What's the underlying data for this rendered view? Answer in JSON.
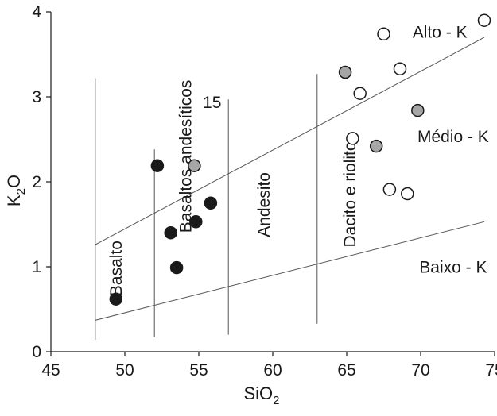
{
  "chart_data": {
    "type": "scatter",
    "title": "",
    "xlabel": {
      "base": "SiO",
      "sub": "2"
    },
    "ylabel": {
      "base": "K",
      "sub": "2",
      "tail": "O"
    },
    "xlim": [
      45,
      75
    ],
    "ylim": [
      0,
      4
    ],
    "xticks": [
      45,
      50,
      55,
      60,
      65,
      70,
      75
    ],
    "yticks": [
      0,
      1,
      2,
      3,
      4
    ],
    "grid": false,
    "legend": "none",
    "series": [
      {
        "fill": "#1a1a1a",
        "points": [
          {
            "x": 49.4,
            "y": 0.62
          },
          {
            "x": 52.2,
            "y": 2.19
          },
          {
            "x": 53.1,
            "y": 1.4
          },
          {
            "x": 53.5,
            "y": 0.99
          },
          {
            "x": 54.8,
            "y": 1.53
          },
          {
            "x": 55.8,
            "y": 1.75
          }
        ]
      },
      {
        "fill": "#a6a6a6",
        "points": [
          {
            "x": 54.7,
            "y": 2.19
          },
          {
            "x": 64.9,
            "y": 3.29
          },
          {
            "x": 67.0,
            "y": 2.42
          },
          {
            "x": 69.8,
            "y": 2.84
          }
        ]
      },
      {
        "fill": "#ffffff",
        "points": [
          {
            "x": 65.4,
            "y": 2.51
          },
          {
            "x": 65.9,
            "y": 3.04
          },
          {
            "x": 67.5,
            "y": 3.74
          },
          {
            "x": 67.9,
            "y": 1.91
          },
          {
            "x": 68.6,
            "y": 3.33
          },
          {
            "x": 69.1,
            "y": 1.86
          },
          {
            "x": 74.3,
            "y": 3.9
          }
        ]
      }
    ],
    "boundaries": [
      {
        "kind": "polyline",
        "points": [
          [
            48,
            0.37
          ],
          [
            74.3,
            1.53
          ]
        ]
      },
      {
        "kind": "polyline",
        "points": [
          [
            48,
            1.26
          ],
          [
            74.3,
            3.7
          ]
        ]
      },
      {
        "kind": "polyline",
        "points": [
          [
            48,
            0.14
          ],
          [
            48,
            3.22
          ]
        ]
      },
      {
        "kind": "polyline",
        "points": [
          [
            52,
            0.17
          ],
          [
            52,
            2.38
          ]
        ]
      },
      {
        "kind": "polyline",
        "points": [
          [
            57,
            0.2
          ],
          [
            57,
            2.97
          ]
        ]
      },
      {
        "kind": "polyline",
        "points": [
          [
            63,
            0.33
          ],
          [
            63,
            3.27
          ]
        ]
      }
    ],
    "field_labels": [
      {
        "text": "Basalto",
        "x": 49.5,
        "y": 0.98,
        "rotate": -90
      },
      {
        "text": "Basaltos andesíticos",
        "x": 54.2,
        "y": 2.3,
        "rotate": -90
      },
      {
        "text": "15",
        "x": 55.9,
        "y": 2.92,
        "rotate": 0
      },
      {
        "text": "Andesito",
        "x": 59.5,
        "y": 1.73,
        "rotate": -90
      },
      {
        "text": "Dacito e riolito",
        "x": 65.3,
        "y": 1.85,
        "rotate": -90
      },
      {
        "text": "Alto - K",
        "x": 71.3,
        "y": 3.75,
        "rotate": 0
      },
      {
        "text": "Médio - K",
        "x": 72.2,
        "y": 2.52,
        "rotate": 0
      },
      {
        "text": "Baixo - K",
        "x": 72.2,
        "y": 0.98,
        "rotate": 0
      }
    ],
    "marker_stroke": "#1a1a1a"
  }
}
